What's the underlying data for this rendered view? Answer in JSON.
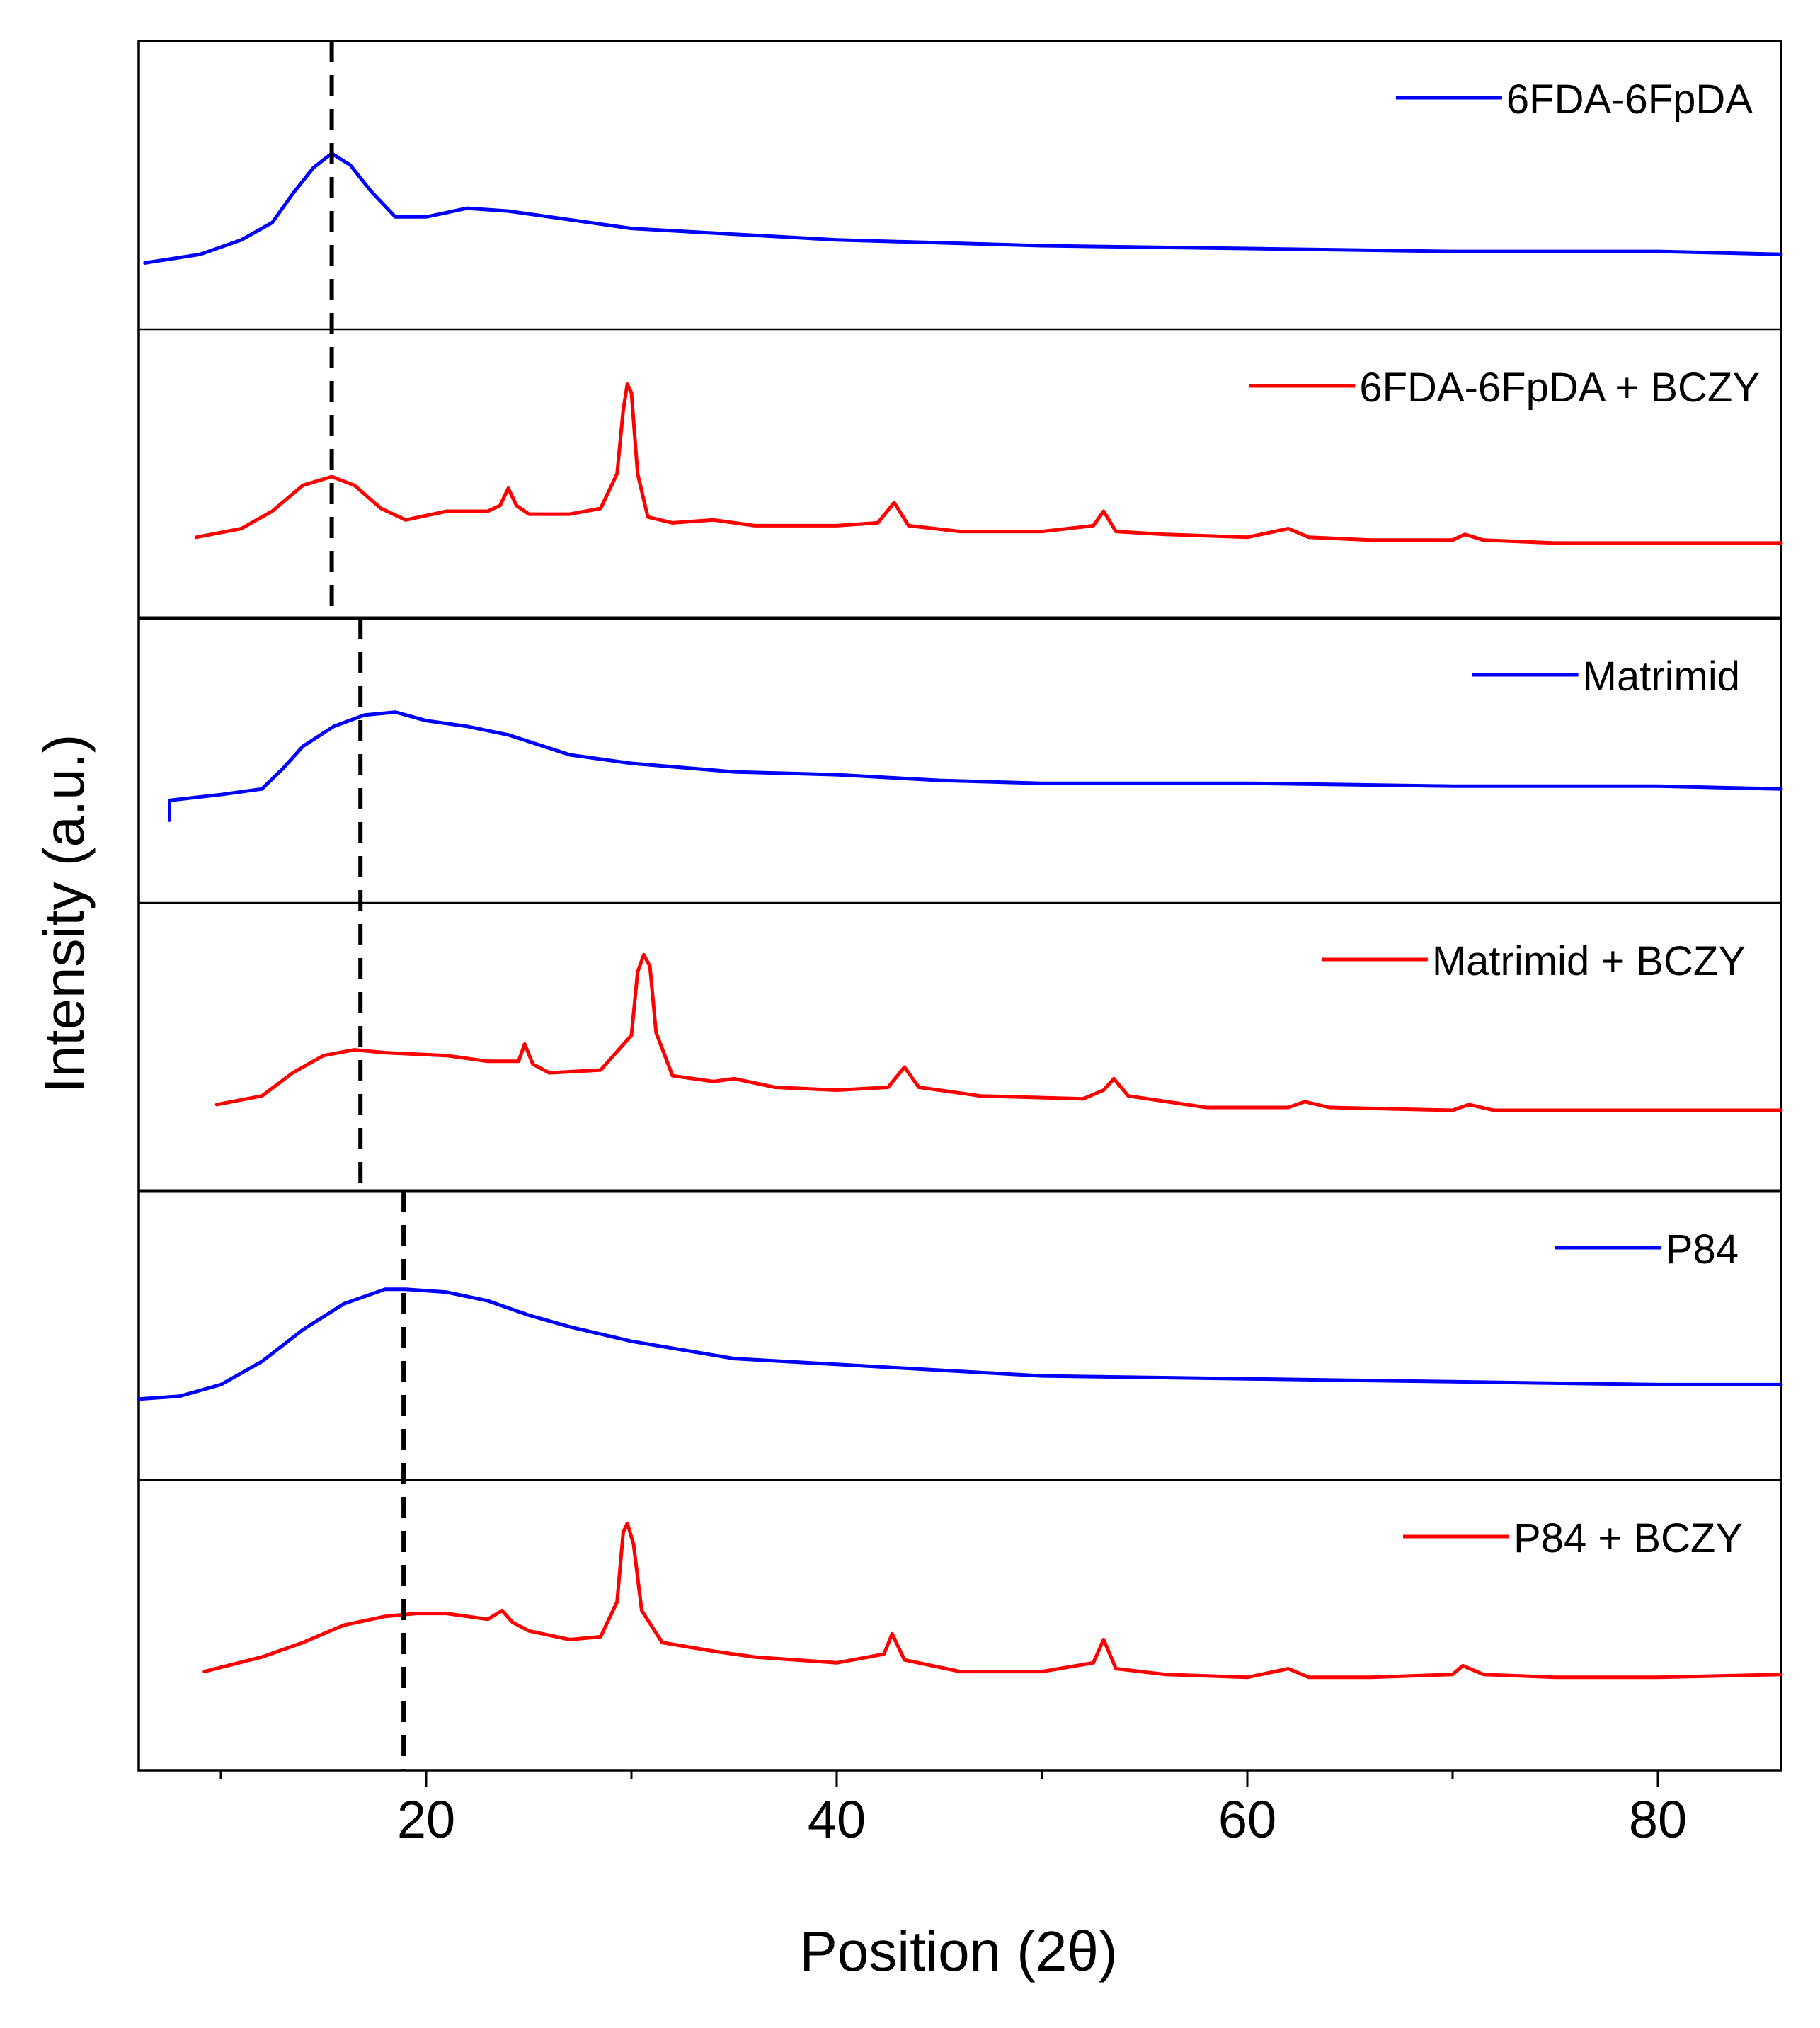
{
  "chart_data": {
    "type": "line",
    "title": "",
    "xlabel": "Position (2θ)",
    "ylabel": "Intensity (a.u.)",
    "xlim": [
      6,
      86
    ],
    "xticks": [
      20,
      40,
      60,
      80
    ],
    "xtick_labels": [
      "20",
      "40",
      "60",
      "80"
    ],
    "y_scale": "normalized stacked panels (arbitrary units)",
    "ylim": [
      0,
      1
    ],
    "grid": false,
    "colors": {
      "pure": "#0000ff",
      "composite": "#ff0000",
      "reference_line": "#000000",
      "frame": "#000000"
    },
    "reference_lines": [
      {
        "name": "6FDA-6FpDA peak",
        "x": 15.4
      },
      {
        "name": "Matrimid peak",
        "x": 16.8
      },
      {
        "name": "P84 peak",
        "x": 18.9
      }
    ],
    "series": [
      {
        "name": "6FDA-6FpDA",
        "legend": "6FDA-6FpDA",
        "color": "#0000ff",
        "points": [
          [
            6.3,
            0.23
          ],
          [
            9,
            0.26
          ],
          [
            11,
            0.31
          ],
          [
            12.5,
            0.37
          ],
          [
            13.5,
            0.47
          ],
          [
            14.5,
            0.56
          ],
          [
            15.4,
            0.61
          ],
          [
            16.3,
            0.57
          ],
          [
            17.3,
            0.48
          ],
          [
            18.5,
            0.39
          ],
          [
            20,
            0.39
          ],
          [
            22,
            0.42
          ],
          [
            24,
            0.41
          ],
          [
            27,
            0.38
          ],
          [
            30,
            0.35
          ],
          [
            35,
            0.33
          ],
          [
            40,
            0.31
          ],
          [
            50,
            0.29
          ],
          [
            60,
            0.28
          ],
          [
            70,
            0.27
          ],
          [
            80,
            0.27
          ],
          [
            86,
            0.26
          ]
        ]
      },
      {
        "name": "6FDA-6FpDA + BCZY",
        "legend": "6FDA-6FpDA + BCZY",
        "color": "#ff0000",
        "points": [
          [
            8.8,
            0.28
          ],
          [
            11,
            0.31
          ],
          [
            12.5,
            0.37
          ],
          [
            14,
            0.46
          ],
          [
            15.4,
            0.49
          ],
          [
            16.5,
            0.46
          ],
          [
            17.8,
            0.38
          ],
          [
            19,
            0.34
          ],
          [
            21,
            0.37
          ],
          [
            23,
            0.37
          ],
          [
            23.6,
            0.39
          ],
          [
            24,
            0.45
          ],
          [
            24.4,
            0.39
          ],
          [
            25,
            0.36
          ],
          [
            27,
            0.36
          ],
          [
            28.5,
            0.38
          ],
          [
            29.3,
            0.5
          ],
          [
            29.6,
            0.72
          ],
          [
            29.8,
            0.81
          ],
          [
            30.0,
            0.78
          ],
          [
            30.3,
            0.5
          ],
          [
            30.8,
            0.35
          ],
          [
            32,
            0.33
          ],
          [
            34,
            0.34
          ],
          [
            36,
            0.32
          ],
          [
            40,
            0.32
          ],
          [
            42,
            0.33
          ],
          [
            42.8,
            0.4
          ],
          [
            43.5,
            0.32
          ],
          [
            46,
            0.3
          ],
          [
            50,
            0.3
          ],
          [
            52.5,
            0.32
          ],
          [
            53,
            0.37
          ],
          [
            53.6,
            0.3
          ],
          [
            56,
            0.29
          ],
          [
            60,
            0.28
          ],
          [
            62,
            0.31
          ],
          [
            63,
            0.28
          ],
          [
            66,
            0.27
          ],
          [
            70,
            0.27
          ],
          [
            70.6,
            0.29
          ],
          [
            71.5,
            0.27
          ],
          [
            75,
            0.26
          ],
          [
            80,
            0.26
          ],
          [
            86,
            0.26
          ]
        ]
      },
      {
        "name": "Matrimid",
        "legend": "Matrimid",
        "color": "#0000ff",
        "points": [
          [
            7.5,
            0.29
          ],
          [
            7.5,
            0.36
          ],
          [
            10,
            0.38
          ],
          [
            12,
            0.4
          ],
          [
            13,
            0.47
          ],
          [
            14,
            0.55
          ],
          [
            15.5,
            0.62
          ],
          [
            17,
            0.66
          ],
          [
            18.5,
            0.67
          ],
          [
            20,
            0.64
          ],
          [
            22,
            0.62
          ],
          [
            24,
            0.59
          ],
          [
            27,
            0.52
          ],
          [
            30,
            0.49
          ],
          [
            35,
            0.46
          ],
          [
            40,
            0.45
          ],
          [
            45,
            0.43
          ],
          [
            50,
            0.42
          ],
          [
            60,
            0.42
          ],
          [
            70,
            0.41
          ],
          [
            80,
            0.41
          ],
          [
            86,
            0.4
          ]
        ]
      },
      {
        "name": "Matrimid + BCZY",
        "legend": "Matrimid + BCZY",
        "color": "#ff0000",
        "points": [
          [
            9.8,
            0.3
          ],
          [
            12,
            0.33
          ],
          [
            13.5,
            0.41
          ],
          [
            15,
            0.47
          ],
          [
            16.5,
            0.49
          ],
          [
            18,
            0.48
          ],
          [
            21,
            0.47
          ],
          [
            23,
            0.45
          ],
          [
            24.5,
            0.45
          ],
          [
            24.8,
            0.51
          ],
          [
            25.2,
            0.44
          ],
          [
            26,
            0.41
          ],
          [
            28.5,
            0.42
          ],
          [
            30.0,
            0.54
          ],
          [
            30.3,
            0.76
          ],
          [
            30.6,
            0.82
          ],
          [
            30.9,
            0.78
          ],
          [
            31.2,
            0.55
          ],
          [
            32,
            0.4
          ],
          [
            34,
            0.38
          ],
          [
            35,
            0.39
          ],
          [
            37,
            0.36
          ],
          [
            40,
            0.35
          ],
          [
            42.5,
            0.36
          ],
          [
            43.3,
            0.43
          ],
          [
            44,
            0.36
          ],
          [
            47,
            0.33
          ],
          [
            52,
            0.32
          ],
          [
            53,
            0.35
          ],
          [
            53.5,
            0.39
          ],
          [
            54.2,
            0.33
          ],
          [
            58,
            0.29
          ],
          [
            62,
            0.29
          ],
          [
            62.8,
            0.31
          ],
          [
            64,
            0.29
          ],
          [
            70,
            0.28
          ],
          [
            70.8,
            0.3
          ],
          [
            72,
            0.28
          ],
          [
            80,
            0.28
          ],
          [
            86,
            0.28
          ]
        ]
      },
      {
        "name": "P84",
        "legend": "P84",
        "color": "#0000ff",
        "points": [
          [
            6,
            0.28
          ],
          [
            8,
            0.29
          ],
          [
            10,
            0.33
          ],
          [
            12,
            0.41
          ],
          [
            14,
            0.52
          ],
          [
            16,
            0.61
          ],
          [
            18,
            0.66
          ],
          [
            19,
            0.66
          ],
          [
            21,
            0.65
          ],
          [
            23,
            0.62
          ],
          [
            25,
            0.57
          ],
          [
            27,
            0.53
          ],
          [
            30,
            0.48
          ],
          [
            35,
            0.42
          ],
          [
            40,
            0.4
          ],
          [
            45,
            0.38
          ],
          [
            50,
            0.36
          ],
          [
            60,
            0.35
          ],
          [
            70,
            0.34
          ],
          [
            80,
            0.33
          ],
          [
            86,
            0.33
          ]
        ]
      },
      {
        "name": "P84 + BCZY",
        "legend": "P84 + BCZY",
        "color": "#ff0000",
        "points": [
          [
            9.2,
            0.34
          ],
          [
            12,
            0.39
          ],
          [
            14,
            0.44
          ],
          [
            16,
            0.5
          ],
          [
            18,
            0.53
          ],
          [
            19.5,
            0.54
          ],
          [
            21,
            0.54
          ],
          [
            23,
            0.52
          ],
          [
            23.7,
            0.55
          ],
          [
            24.2,
            0.51
          ],
          [
            25,
            0.48
          ],
          [
            27,
            0.45
          ],
          [
            28.5,
            0.46
          ],
          [
            29.3,
            0.58
          ],
          [
            29.6,
            0.82
          ],
          [
            29.8,
            0.85
          ],
          [
            30.1,
            0.78
          ],
          [
            30.5,
            0.55
          ],
          [
            31.5,
            0.44
          ],
          [
            34,
            0.41
          ],
          [
            36,
            0.39
          ],
          [
            40,
            0.37
          ],
          [
            42.3,
            0.4
          ],
          [
            42.7,
            0.47
          ],
          [
            43.3,
            0.38
          ],
          [
            46,
            0.34
          ],
          [
            50,
            0.34
          ],
          [
            52.5,
            0.37
          ],
          [
            53,
            0.45
          ],
          [
            53.6,
            0.35
          ],
          [
            56,
            0.33
          ],
          [
            60,
            0.32
          ],
          [
            62,
            0.35
          ],
          [
            63,
            0.32
          ],
          [
            66,
            0.32
          ],
          [
            70,
            0.33
          ],
          [
            70.5,
            0.36
          ],
          [
            71.5,
            0.33
          ],
          [
            75,
            0.32
          ],
          [
            80,
            0.32
          ],
          [
            86,
            0.33
          ]
        ]
      }
    ]
  }
}
